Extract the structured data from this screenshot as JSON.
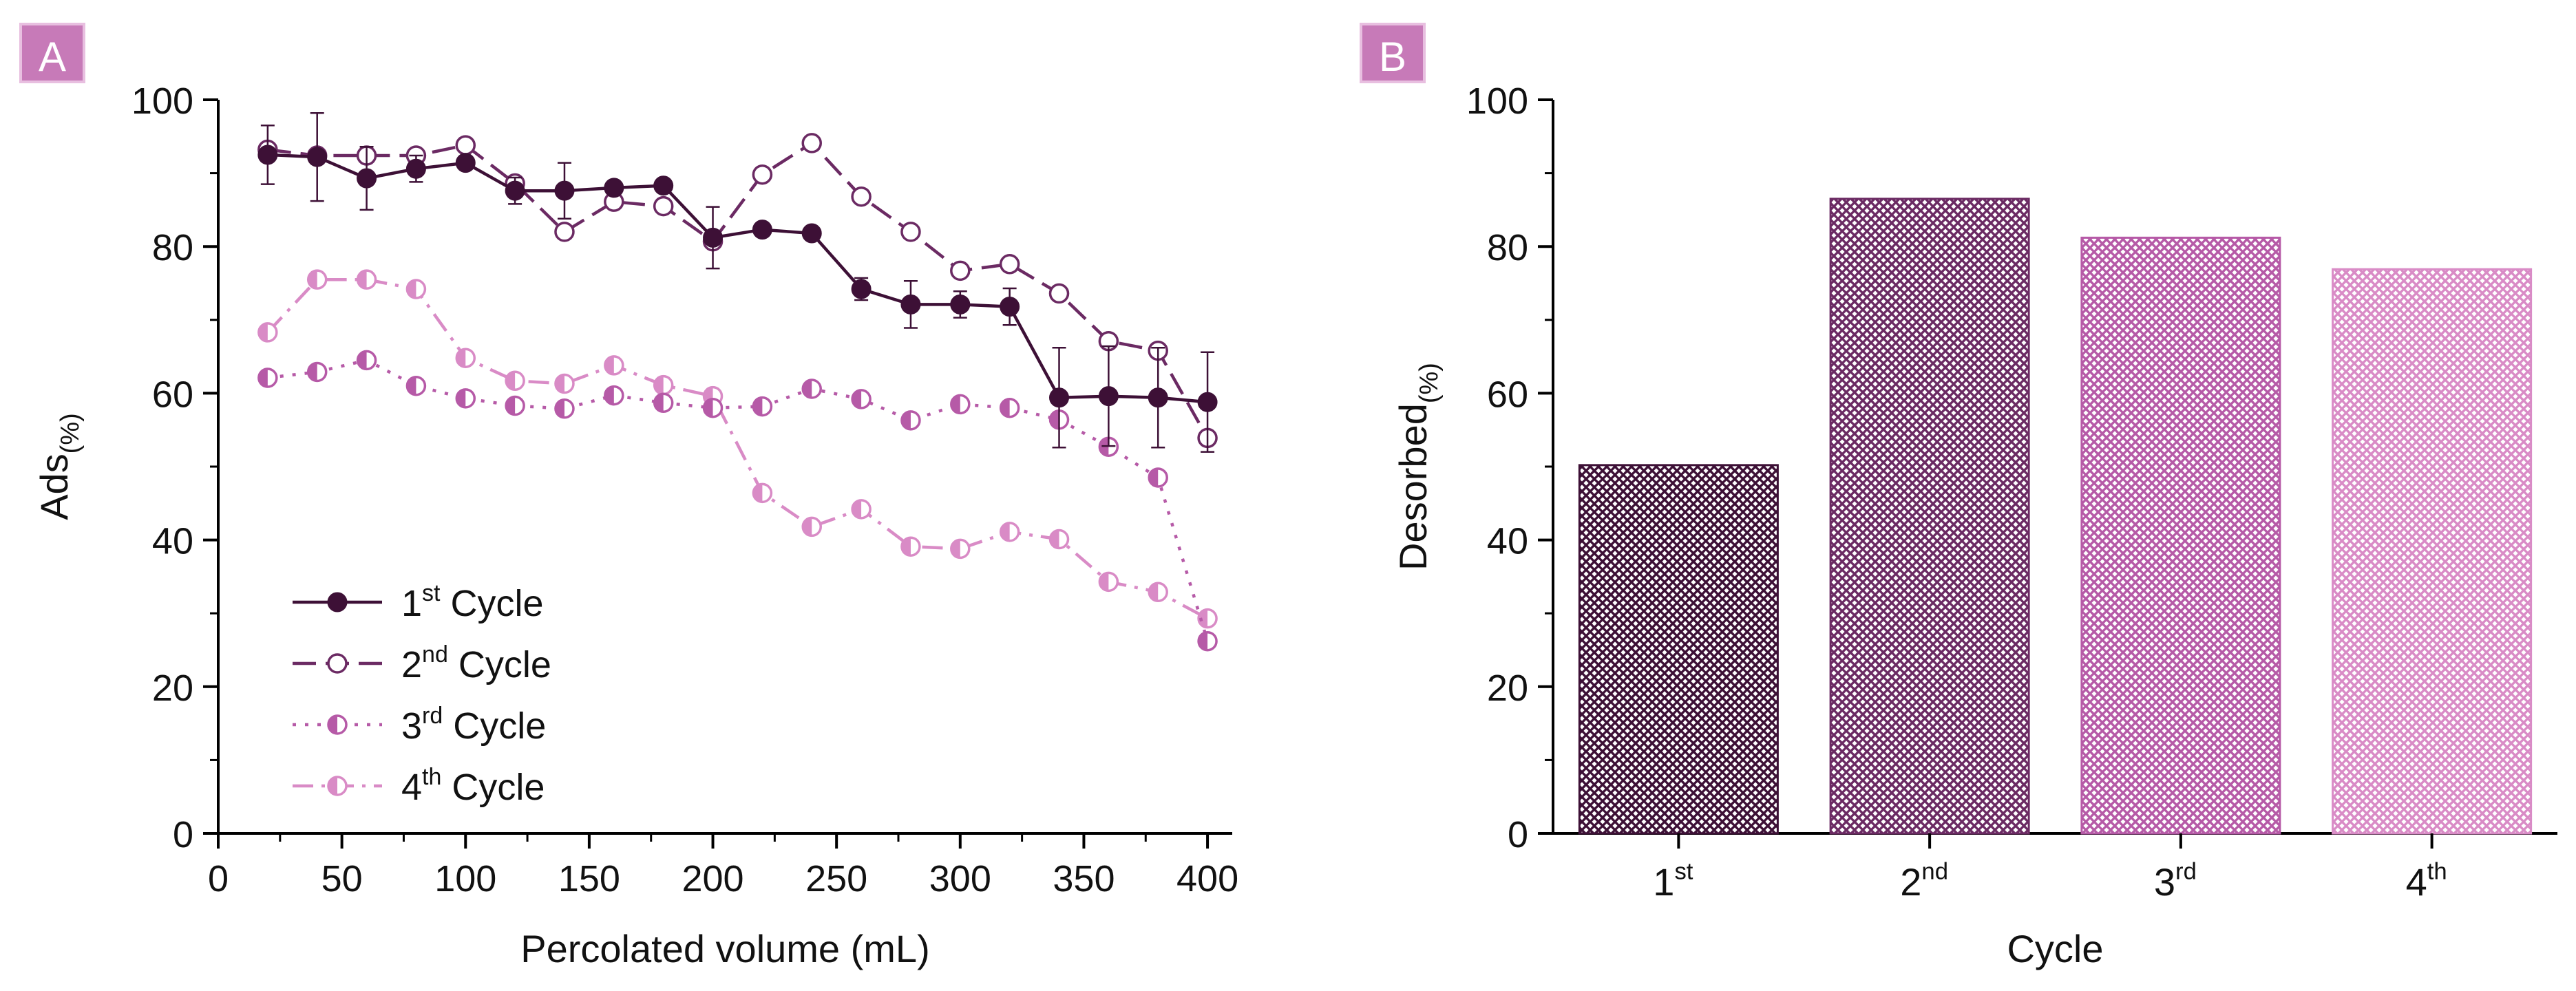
{
  "colors": {
    "c1": "#3d1036",
    "c2": "#6b2a63",
    "c3": "#b65aa7",
    "c4": "#d98bc6",
    "badge": "#c77ab8",
    "badge_text": "#ffffff"
  },
  "chart_data": [
    {
      "panel": "A",
      "type": "line",
      "xlabel": "Percolated volume (mL)",
      "ylabel": "Ads",
      "ylabel_sub": "(%)",
      "xlim": [
        0,
        410
      ],
      "ylim": [
        0,
        100
      ],
      "xticks": [
        0,
        50,
        100,
        150,
        200,
        250,
        300,
        350,
        400
      ],
      "yticks": [
        0,
        20,
        40,
        60,
        80,
        100
      ],
      "legend_position": "bottom-left",
      "x": [
        20,
        40,
        60,
        80,
        100,
        120,
        140,
        160,
        180,
        200,
        220,
        240,
        260,
        280,
        300,
        320,
        340,
        360,
        380,
        400
      ],
      "series": [
        {
          "name": "1st Cycle",
          "label_num": "1",
          "label_sup": "st",
          "label_rest": " Cycle",
          "line": "solid",
          "marker": "filled",
          "color_key": "c1",
          "values": [
            92.5,
            92.2,
            89.3,
            90.6,
            91.4,
            87.6,
            87.6,
            88.0,
            88.3,
            81.2,
            82.3,
            81.8,
            74.2,
            72.1,
            72.1,
            71.8,
            59.4,
            59.6,
            59.4,
            58.8
          ],
          "errors": [
            4.0,
            6.0,
            4.3,
            1.8,
            0.8,
            1.8,
            3.8,
            0.8,
            0.8,
            4.2,
            0.5,
            0.5,
            1.5,
            3.2,
            1.8,
            2.5,
            6.8,
            6.8,
            6.8,
            6.8
          ]
        },
        {
          "name": "2nd Cycle",
          "label_num": "2",
          "label_sup": "nd",
          "label_rest": " Cycle",
          "line": "dashed",
          "marker": "open",
          "color_key": "c2",
          "values": [
            93.2,
            92.4,
            92.4,
            92.4,
            93.8,
            88.6,
            82.0,
            86.1,
            85.5,
            80.7,
            89.8,
            94.1,
            86.8,
            82.0,
            76.7,
            77.6,
            73.6,
            67.1,
            65.8,
            53.9
          ]
        },
        {
          "name": "3rd Cycle",
          "label_num": "3",
          "label_sup": "rd",
          "label_rest": " Cycle",
          "line": "dotted",
          "marker": "half",
          "color_key": "c3",
          "values": [
            62.1,
            62.9,
            64.5,
            61.0,
            59.3,
            58.3,
            57.9,
            59.7,
            58.7,
            58.0,
            58.2,
            60.6,
            59.2,
            56.3,
            58.5,
            58.0,
            56.4,
            52.7,
            48.5,
            26.2
          ]
        },
        {
          "name": "4th Cycle",
          "label_num": "4",
          "label_sup": "th",
          "label_rest": " Cycle",
          "line": "dashdot",
          "marker": "half",
          "color_key": "c4",
          "values": [
            68.3,
            75.5,
            75.5,
            74.2,
            64.8,
            61.7,
            61.3,
            63.8,
            61.1,
            59.6,
            46.4,
            41.8,
            44.2,
            39.1,
            38.8,
            41.1,
            40.1,
            34.3,
            32.9,
            29.3
          ]
        }
      ]
    },
    {
      "panel": "B",
      "type": "bar",
      "xlabel": "Cycle",
      "ylabel": "Desorbed",
      "ylabel_sub": "(%)",
      "ylim": [
        0,
        100
      ],
      "yticks": [
        0,
        20,
        40,
        60,
        80,
        100
      ],
      "categories": [
        {
          "num": "1",
          "sup": "st"
        },
        {
          "num": "2",
          "sup": "nd"
        },
        {
          "num": "3",
          "sup": "rd"
        },
        {
          "num": "4",
          "sup": "th"
        }
      ],
      "values": [
        50.2,
        86.5,
        81.2,
        76.9
      ],
      "bar_color_keys": [
        "c1",
        "c2",
        "c3",
        "c4"
      ]
    }
  ]
}
